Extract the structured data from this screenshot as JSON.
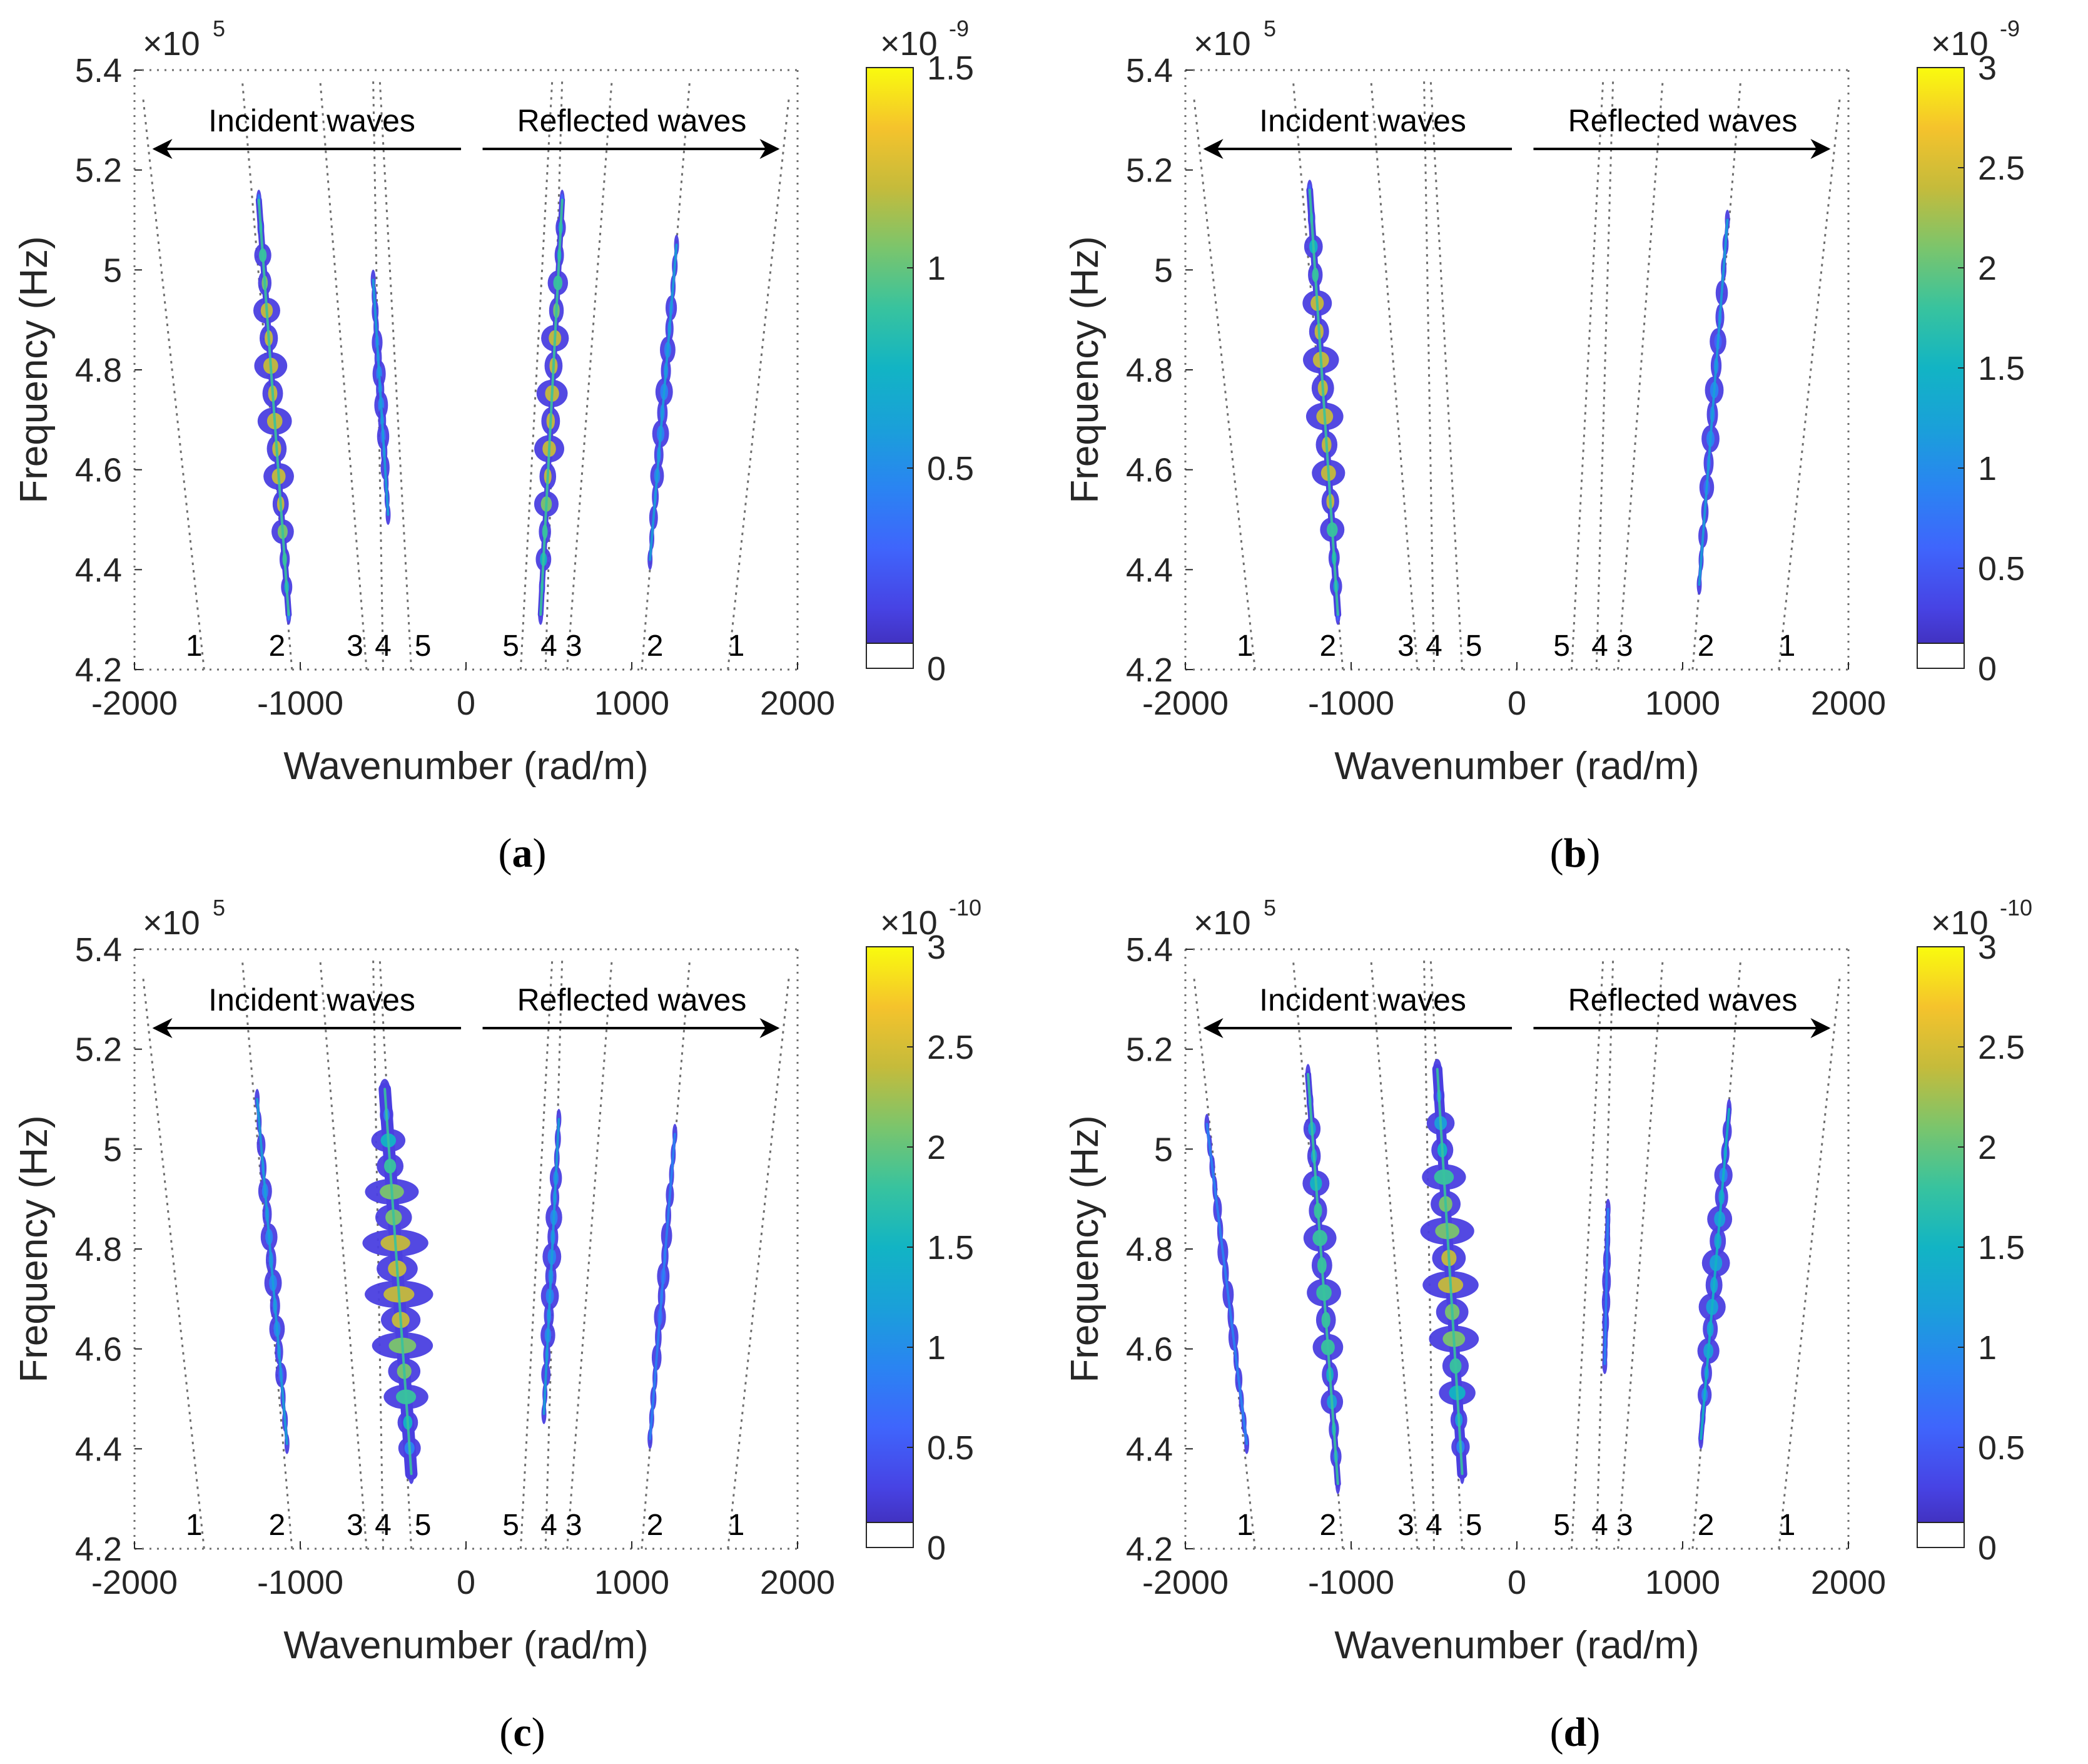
{
  "figure": {
    "panel_order": [
      "a",
      "b",
      "c",
      "d"
    ]
  },
  "shared": {
    "xlabel": "Wavenumber (rad/m)",
    "ylabel": "Frequency (Hz)",
    "x_ticks": [
      -2000,
      -1000,
      0,
      1000,
      2000
    ],
    "x_tick_labels": [
      "-2000",
      "-1000",
      "0",
      "1000",
      "2000"
    ],
    "y_ticks": [
      4.2,
      4.4,
      4.6,
      4.8,
      5.0,
      5.2,
      5.4
    ],
    "y_tick_labels": [
      "4.2",
      "4.4",
      "4.6",
      "4.8",
      "5",
      "5.2",
      "5.4"
    ],
    "y_multiplier_base": "×10",
    "y_multiplier_exp": "5",
    "incident_label": "Incident waves",
    "reflected_label": "Reflected waves",
    "colormap": "parula",
    "colors": {
      "axis": "#262626",
      "guide": "#6e6e6e",
      "arrow": "#000000",
      "band_edge": "#4a3fe0",
      "band_core": "#2fb4c8",
      "hot": "#2ad18a"
    }
  },
  "chart_data": [
    {
      "panel": "a",
      "caption_letter": "a",
      "type": "heatmap",
      "xlabel": "Wavenumber (rad/m)",
      "ylabel": "Frequency (Hz)",
      "xlim": [
        -2000,
        2000
      ],
      "ylim": [
        4.2,
        5.4
      ],
      "y_scale_exponent": 5,
      "colorbar": {
        "min": 0,
        "max": 1.5,
        "exponent": "-9",
        "ticks": [
          0,
          0.5,
          1,
          1.5
        ],
        "tick_labels": [
          "0",
          "0.5",
          "1",
          "1.5"
        ]
      },
      "mode_labels": {
        "incident": [
          "1",
          "2",
          "3",
          "4",
          "5"
        ],
        "reflected": [
          "5",
          "4",
          "3",
          "2",
          "1"
        ]
      },
      "incident_label": "Incident waves",
      "reflected_label": "Reflected waves",
      "guides": [
        {
          "k": [
            -1580,
            -1950
          ],
          "f": [
            4.2,
            5.35
          ]
        },
        {
          "k": [
            -1050,
            -1350
          ],
          "f": [
            4.2,
            5.38
          ]
        },
        {
          "k": [
            -600,
            -880
          ],
          "f": [
            4.2,
            5.38
          ]
        },
        {
          "k": [
            -500,
            -560
          ],
          "f": [
            4.2,
            5.38
          ]
        },
        {
          "k": [
            -330,
            -520
          ],
          "f": [
            4.2,
            5.38
          ]
        },
        {
          "k": [
            330,
            520
          ],
          "f": [
            4.2,
            5.38
          ]
        },
        {
          "k": [
            480,
            580
          ],
          "f": [
            4.2,
            5.38
          ]
        },
        {
          "k": [
            610,
            880
          ],
          "f": [
            4.2,
            5.38
          ]
        },
        {
          "k": [
            1060,
            1350
          ],
          "f": [
            4.2,
            5.38
          ]
        },
        {
          "k": [
            1580,
            1950
          ],
          "f": [
            4.2,
            5.35
          ]
        }
      ],
      "energy_bands": [
        {
          "mode": "2-incident",
          "k": [
            -1250,
            -1070
          ],
          "f": [
            5.14,
            4.31
          ],
          "peak": 1.5,
          "width": 55
        },
        {
          "mode": "4-incident",
          "k": [
            -560,
            -470
          ],
          "f": [
            4.98,
            4.51
          ],
          "peak": 0.25,
          "width": 22
        },
        {
          "mode": "4-reflected",
          "k": [
            450,
            580
          ],
          "f": [
            4.31,
            5.14
          ],
          "peak": 1.2,
          "width": 50
        },
        {
          "mode": "2-reflected",
          "k": [
            1110,
            1270
          ],
          "f": [
            4.42,
            5.05
          ],
          "peak": 0.3,
          "width": 28
        }
      ]
    },
    {
      "panel": "b",
      "caption_letter": "b",
      "type": "heatmap",
      "xlabel": "Wavenumber (rad/m)",
      "ylabel": "Frequency (Hz)",
      "xlim": [
        -2000,
        2000
      ],
      "ylim": [
        4.2,
        5.4
      ],
      "y_scale_exponent": 5,
      "colorbar": {
        "min": 0,
        "max": 3,
        "exponent": "-9",
        "ticks": [
          0,
          0.5,
          1,
          1.5,
          2,
          2.5,
          3
        ],
        "tick_labels": [
          "0",
          "0.5",
          "1",
          "1.5",
          "2",
          "2.5",
          "3"
        ]
      },
      "mode_labels": {
        "incident": [
          "1",
          "2",
          "3",
          "4",
          "5"
        ],
        "reflected": [
          "5",
          "4",
          "3",
          "2",
          "1"
        ]
      },
      "incident_label": "Incident waves",
      "reflected_label": "Reflected waves",
      "guides": [
        {
          "k": [
            -1580,
            -1950
          ],
          "f": [
            4.2,
            5.35
          ]
        },
        {
          "k": [
            -1050,
            -1350
          ],
          "f": [
            4.2,
            5.38
          ]
        },
        {
          "k": [
            -600,
            -880
          ],
          "f": [
            4.2,
            5.38
          ]
        },
        {
          "k": [
            -500,
            -560
          ],
          "f": [
            4.2,
            5.38
          ]
        },
        {
          "k": [
            -330,
            -520
          ],
          "f": [
            4.2,
            5.38
          ]
        },
        {
          "k": [
            330,
            520
          ],
          "f": [
            4.2,
            5.38
          ]
        },
        {
          "k": [
            480,
            580
          ],
          "f": [
            4.2,
            5.38
          ]
        },
        {
          "k": [
            610,
            880
          ],
          "f": [
            4.2,
            5.38
          ]
        },
        {
          "k": [
            1060,
            1350
          ],
          "f": [
            4.2,
            5.38
          ]
        },
        {
          "k": [
            1580,
            1950
          ],
          "f": [
            4.2,
            5.35
          ]
        }
      ],
      "energy_bands": [
        {
          "mode": "2-incident",
          "k": [
            -1250,
            -1080
          ],
          "f": [
            5.16,
            4.31
          ],
          "peak": 2.5,
          "width": 60
        },
        {
          "mode": "2-reflected",
          "k": [
            1100,
            1270
          ],
          "f": [
            4.37,
            5.1
          ],
          "peak": 0.5,
          "width": 30
        }
      ]
    },
    {
      "panel": "c",
      "caption_letter": "c",
      "type": "heatmap",
      "xlabel": "Wavenumber (rad/m)",
      "ylabel": "Frequency (Hz)",
      "xlim": [
        -2000,
        2000
      ],
      "ylim": [
        4.2,
        5.4
      ],
      "y_scale_exponent": 5,
      "colorbar": {
        "min": 0,
        "max": 3,
        "exponent": "-10",
        "ticks": [
          0,
          0.5,
          1,
          1.5,
          2,
          2.5,
          3
        ],
        "tick_labels": [
          "0",
          "0.5",
          "1",
          "1.5",
          "2",
          "2.5",
          "3"
        ]
      },
      "mode_labels": {
        "incident": [
          "1",
          "2",
          "3",
          "4",
          "5"
        ],
        "reflected": [
          "5",
          "4",
          "3",
          "2",
          "1"
        ]
      },
      "incident_label": "Incident waves",
      "reflected_label": "Reflected waves",
      "guides": [
        {
          "k": [
            -1580,
            -1950
          ],
          "f": [
            4.2,
            5.35
          ]
        },
        {
          "k": [
            -1050,
            -1350
          ],
          "f": [
            4.2,
            5.38
          ]
        },
        {
          "k": [
            -600,
            -880
          ],
          "f": [
            4.2,
            5.38
          ]
        },
        {
          "k": [
            -500,
            -560
          ],
          "f": [
            4.2,
            5.38
          ]
        },
        {
          "k": [
            -330,
            -520
          ],
          "f": [
            4.2,
            5.38
          ]
        },
        {
          "k": [
            330,
            520
          ],
          "f": [
            4.2,
            5.38
          ]
        },
        {
          "k": [
            480,
            580
          ],
          "f": [
            4.2,
            5.38
          ]
        },
        {
          "k": [
            610,
            880
          ],
          "f": [
            4.2,
            5.38
          ]
        },
        {
          "k": [
            1060,
            1350
          ],
          "f": [
            4.2,
            5.38
          ]
        },
        {
          "k": [
            1580,
            1950
          ],
          "f": [
            4.2,
            5.35
          ]
        }
      ],
      "energy_bands": [
        {
          "mode": "2-incident",
          "k": [
            -1260,
            -1080
          ],
          "f": [
            5.1,
            4.41
          ],
          "peak": 0.6,
          "width": 28
        },
        {
          "mode": "4-incident",
          "k": [
            -490,
            -330
          ],
          "f": [
            5.12,
            4.35
          ],
          "peak": 2.2,
          "width": 110
        },
        {
          "mode": "4-reflected",
          "k": [
            470,
            560
          ],
          "f": [
            4.47,
            5.06
          ],
          "peak": 0.7,
          "width": 30
        },
        {
          "mode": "2-reflected",
          "k": [
            1110,
            1260
          ],
          "f": [
            4.42,
            5.03
          ],
          "peak": 0.4,
          "width": 20
        }
      ]
    },
    {
      "panel": "d",
      "caption_letter": "d",
      "type": "heatmap",
      "xlabel": "Wavenumber (rad/m)",
      "ylabel": "Frequency (Hz)",
      "xlim": [
        -2000,
        2000
      ],
      "ylim": [
        4.2,
        5.4
      ],
      "y_scale_exponent": 5,
      "colorbar": {
        "min": 0,
        "max": 3,
        "exponent": "-10",
        "ticks": [
          0,
          0.5,
          1,
          1.5,
          2,
          2.5,
          3
        ],
        "tick_labels": [
          "0",
          "0.5",
          "1",
          "1.5",
          "2",
          "2.5",
          "3"
        ]
      },
      "mode_labels": {
        "incident": [
          "1",
          "2",
          "3",
          "4",
          "5"
        ],
        "reflected": [
          "5",
          "4",
          "3",
          "2",
          "1"
        ]
      },
      "incident_label": "Incident waves",
      "reflected_label": "Reflected waves",
      "guides": [
        {
          "k": [
            -1580,
            -1950
          ],
          "f": [
            4.2,
            5.35
          ]
        },
        {
          "k": [
            -1050,
            -1350
          ],
          "f": [
            4.2,
            5.38
          ]
        },
        {
          "k": [
            -600,
            -880
          ],
          "f": [
            4.2,
            5.38
          ]
        },
        {
          "k": [
            -500,
            -560
          ],
          "f": [
            4.2,
            5.38
          ]
        },
        {
          "k": [
            -330,
            -520
          ],
          "f": [
            4.2,
            5.38
          ]
        },
        {
          "k": [
            330,
            520
          ],
          "f": [
            4.2,
            5.38
          ]
        },
        {
          "k": [
            480,
            580
          ],
          "f": [
            4.2,
            5.38
          ]
        },
        {
          "k": [
            610,
            880
          ],
          "f": [
            4.2,
            5.38
          ]
        },
        {
          "k": [
            1060,
            1350
          ],
          "f": [
            4.2,
            5.38
          ]
        },
        {
          "k": [
            1580,
            1950
          ],
          "f": [
            4.2,
            5.35
          ]
        }
      ],
      "energy_bands": [
        {
          "mode": "1-incident",
          "k": [
            -1870,
            -1630
          ],
          "f": [
            5.05,
            4.41
          ],
          "peak": 0.3,
          "width": 18
        },
        {
          "mode": "2-incident",
          "k": [
            -1260,
            -1080
          ],
          "f": [
            5.15,
            4.33
          ],
          "peak": 1.6,
          "width": 55
        },
        {
          "mode": "4-incident",
          "k": [
            -480,
            -330
          ],
          "f": [
            5.16,
            4.35
          ],
          "peak": 2.0,
          "width": 90
        },
        {
          "mode": "4-reflected",
          "k": [
            530,
            550
          ],
          "f": [
            4.57,
            4.88
          ],
          "peak": 0.3,
          "width": 14
        },
        {
          "mode": "2-reflected",
          "k": [
            1110,
            1280
          ],
          "f": [
            4.42,
            5.08
          ],
          "peak": 1.0,
          "width": 45
        }
      ]
    }
  ],
  "captions": [
    {
      "open": "(",
      "letter": "a",
      "close": ")"
    },
    {
      "open": "(",
      "letter": "b",
      "close": ")"
    },
    {
      "open": "(",
      "letter": "c",
      "close": ")"
    },
    {
      "open": "(",
      "letter": "d",
      "close": ")"
    }
  ]
}
